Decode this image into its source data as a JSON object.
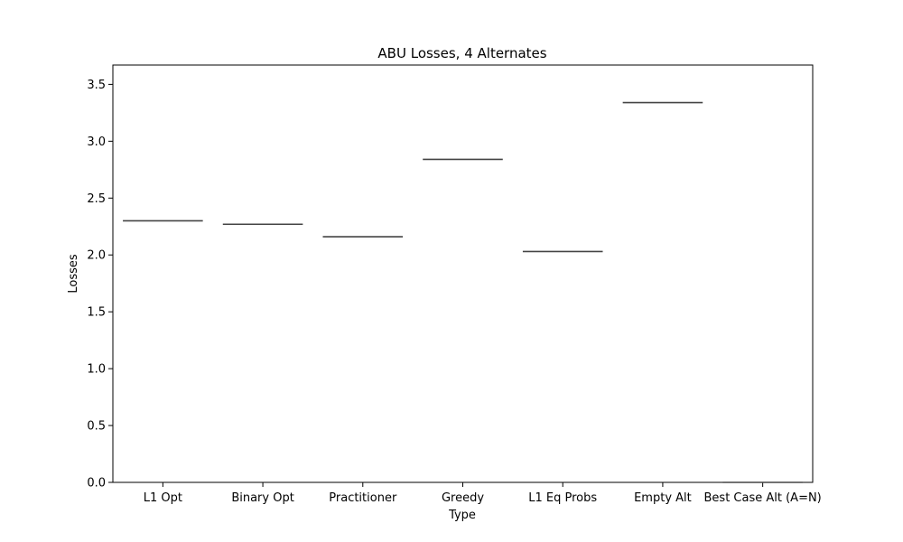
{
  "chart_data": {
    "type": "box",
    "title": "ABU Losses, 4 Alternates",
    "xlabel": "Type",
    "ylabel": "Losses",
    "categories": [
      "L1 Opt",
      "Binary Opt",
      "Practitioner",
      "Greedy",
      "L1 Eq Probs",
      "Empty Alt",
      "Best Case Alt (A=N)"
    ],
    "values": [
      2.3,
      2.27,
      2.16,
      2.84,
      2.03,
      3.34,
      0.0
    ],
    "ylim": [
      0,
      3.67
    ],
    "yticks": [
      0.0,
      0.5,
      1.0,
      1.5,
      2.0,
      2.5,
      3.0,
      3.5
    ],
    "ytick_labels": [
      "0.0",
      "0.5",
      "1.0",
      "1.5",
      "2.0",
      "2.5",
      "3.0",
      "3.5"
    ],
    "grid": false,
    "legend": "none",
    "colors": {
      "median": "#444444",
      "axis": "#000000",
      "background": "#ffffff"
    }
  }
}
